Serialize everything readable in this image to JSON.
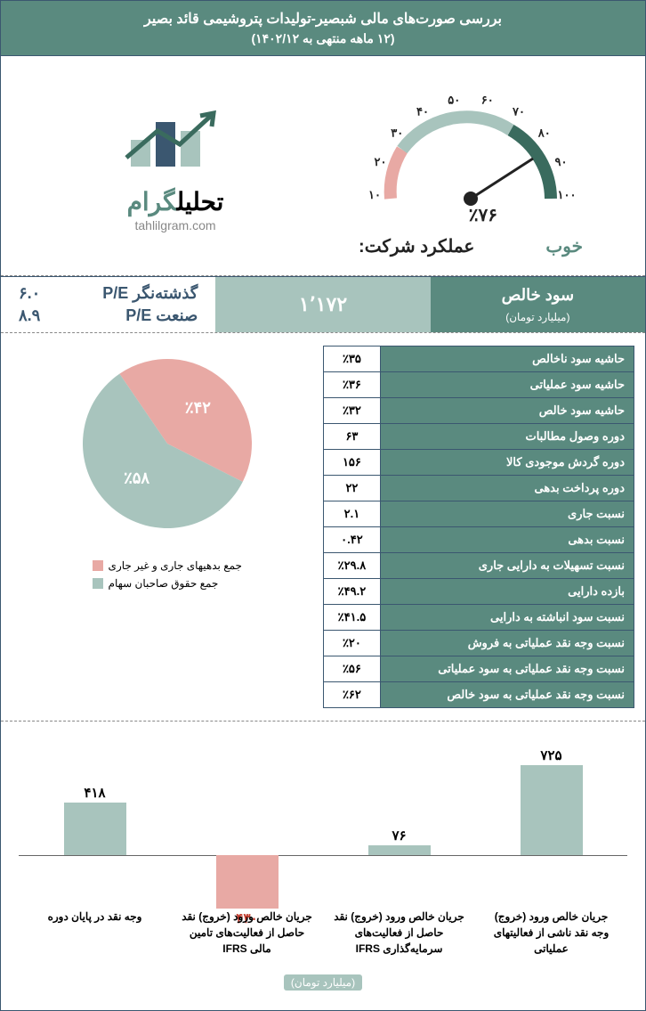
{
  "header": {
    "title": "بررسی صورت‌های مالی شبصیر-تولیدات پتروشیمی قائد بصیر",
    "sub": "(۱۲ ماهه منتهی به ۱۴۰۲/۱۲)"
  },
  "logo": {
    "brand1": "تحلیل",
    "brand2": "گرام",
    "url": "tahlilgram.com"
  },
  "gauge": {
    "value": 76,
    "display": "٪۷۶",
    "ticks": [
      "۱۰",
      "۲۰",
      "۳۰",
      "۴۰",
      "۵۰",
      "۶۰",
      "۷۰",
      "۸۰",
      "۹۰",
      "۱۰۰"
    ],
    "colors": {
      "red": "#e8a9a4",
      "mid": "#a8c4bd",
      "green": "#3a6b5e"
    },
    "perf_label": "عملکرد شرکت:",
    "perf_value": "خوب"
  },
  "metrics": {
    "profit_label": "سود خالص",
    "profit_unit": "(میلیارد تومان)",
    "profit_value": "۱٬۱۷۲",
    "pe_trailing_label": "گذشته‌نگر P/E",
    "pe_trailing_value": "۶.۰",
    "pe_industry_label": "صنعت P/E",
    "pe_industry_value": "۸.۹"
  },
  "pie": {
    "slices": [
      {
        "label": "جمع بدهیهای جاری و غیر جاری",
        "value": 42,
        "display": "٪۴۲",
        "color": "#e8a9a4"
      },
      {
        "label": "جمع حقوق صاحبان سهام",
        "value": 58,
        "display": "٪۵۸",
        "color": "#a8c4bd"
      }
    ]
  },
  "ratios": [
    {
      "name": "حاشیه سود ناخالص",
      "value": "٪۳۵"
    },
    {
      "name": "حاشیه سود عملیاتی",
      "value": "٪۳۶"
    },
    {
      "name": "حاشیه سود خالص",
      "value": "٪۳۲"
    },
    {
      "name": "دوره وصول مطالبات",
      "value": "۶۳"
    },
    {
      "name": "دوره گردش موجودی کالا",
      "value": "۱۵۶"
    },
    {
      "name": "دوره پرداخت بدهی",
      "value": "۲۲"
    },
    {
      "name": "نسبت جاری",
      "value": "۲.۱"
    },
    {
      "name": "نسبت بدهی",
      "value": "۰.۴۲"
    },
    {
      "name": "نسبت تسهیلات به دارایی جاری",
      "value": "٪۲۹.۸"
    },
    {
      "name": "بازده دارایی",
      "value": "٪۴۹.۲"
    },
    {
      "name": "نسبت سود انباشته به دارایی",
      "value": "٪۴۱.۵"
    },
    {
      "name": "نسبت وجه نقد عملیاتی به فروش",
      "value": "٪۲۰"
    },
    {
      "name": "نسبت وجه نقد عملیاتی به سود عملیاتی",
      "value": "٪۵۶"
    },
    {
      "name": "نسبت وجه نقد عملیاتی به سود خالص",
      "value": "٪۶۲"
    }
  ],
  "bars": {
    "axis_zero": 130,
    "scale": 0.14,
    "items": [
      {
        "label": "جریان خالص ورود (خروج) وجه نقد ناشی از فعالیتهای عملیاتی",
        "value": 725,
        "display": "۷۲۵",
        "color": "#a8c4bd"
      },
      {
        "label": "جریان خالص ورود (خروج) نقد حاصل از فعالیت‌های سرمایه‌گذاری IFRS",
        "value": 76,
        "display": "۷۶",
        "color": "#a8c4bd"
      },
      {
        "label": "جریان خالص ورود (خروج) نقد حاصل از فعالیت‌های تامین مالی IFRS",
        "value": -430,
        "display": "۴۳۰",
        "color": "#e8a9a4",
        "textcolor": "#c0392b"
      },
      {
        "label": "وجه نقد در پایان دوره",
        "value": 418,
        "display": "۴۱۸",
        "color": "#a8c4bd"
      }
    ],
    "footer": "(میلیارد تومان)"
  },
  "palette": {
    "teal": "#5a8a7f",
    "light": "#a8c4bd",
    "pink": "#e8a9a4",
    "navy": "#3b5770"
  }
}
